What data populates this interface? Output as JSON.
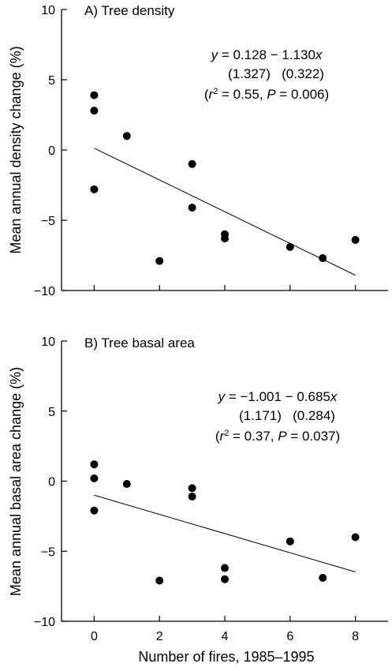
{
  "chart_data": [
    {
      "type": "scatter",
      "title": "A) Tree density",
      "ylabel": "Mean annual density change (%)",
      "xlabel": "",
      "xlim": [
        -1,
        9
      ],
      "ylim": [
        -10,
        10
      ],
      "y_ticks": [
        -10,
        -5,
        0,
        5,
        10
      ],
      "x_ticks": [
        0,
        2,
        4,
        6,
        8
      ],
      "points": [
        {
          "x": 0,
          "y": 3.9
        },
        {
          "x": 0,
          "y": 2.8
        },
        {
          "x": 0,
          "y": -2.8
        },
        {
          "x": 1,
          "y": 1.0
        },
        {
          "x": 2,
          "y": -7.9
        },
        {
          "x": 3,
          "y": -1.0
        },
        {
          "x": 3,
          "y": -4.1
        },
        {
          "x": 4,
          "y": -6.0
        },
        {
          "x": 4,
          "y": -6.3
        },
        {
          "x": 6,
          "y": -6.9
        },
        {
          "x": 7,
          "y": -7.7
        },
        {
          "x": 8,
          "y": -6.4
        }
      ],
      "fit": {
        "intercept": 0.128,
        "slope": -1.13,
        "x_range": [
          0,
          8
        ]
      },
      "equation": {
        "line1_parts": [
          "y",
          " = 0.128 − 1.130",
          "x"
        ],
        "line2": "(1.327)   (0.322)",
        "line3_parts": [
          "(r",
          "2",
          " = 0.55, ",
          "P",
          " = 0.006)"
        ]
      }
    },
    {
      "type": "scatter",
      "title": "B) Tree basal area",
      "ylabel": "Mean annual basal area change (%)",
      "xlabel": "Number of fires, 1985–1995",
      "xlim": [
        -1,
        9
      ],
      "ylim": [
        -10,
        10
      ],
      "y_ticks": [
        -10,
        -5,
        0,
        5,
        10
      ],
      "x_ticks": [
        0,
        2,
        4,
        6,
        8
      ],
      "points": [
        {
          "x": 0,
          "y": 1.2
        },
        {
          "x": 0,
          "y": 0.2
        },
        {
          "x": 0,
          "y": -2.1
        },
        {
          "x": 1,
          "y": -0.2
        },
        {
          "x": 2,
          "y": -7.1
        },
        {
          "x": 3,
          "y": -0.5
        },
        {
          "x": 3,
          "y": -1.1
        },
        {
          "x": 4,
          "y": -6.2
        },
        {
          "x": 4,
          "y": -7.0
        },
        {
          "x": 6,
          "y": -4.3
        },
        {
          "x": 7,
          "y": -6.9
        },
        {
          "x": 8,
          "y": -4.0
        }
      ],
      "fit": {
        "intercept": -1.001,
        "slope": -0.685,
        "x_range": [
          0,
          8
        ]
      },
      "equation": {
        "line1_parts": [
          "y",
          " = −1.001 − 0.685",
          "x"
        ],
        "line2": "(1.171)   (0.284)",
        "line3_parts": [
          "(r",
          "2",
          " = 0.37, ",
          "P",
          " = 0.037)"
        ]
      }
    }
  ]
}
